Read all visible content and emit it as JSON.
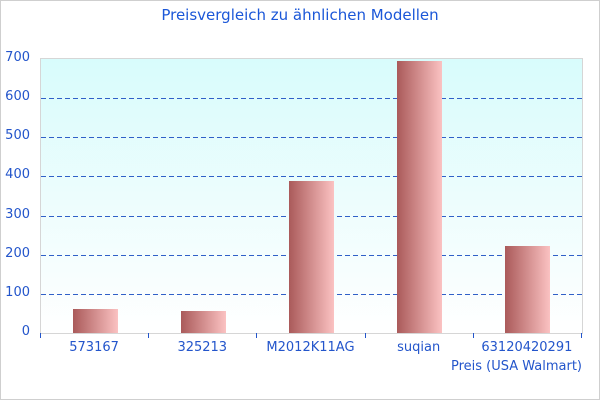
{
  "title": "Preisvergleich zu ähnlichen Modellen",
  "chart_data": {
    "type": "bar",
    "categories": [
      "573167",
      "325213",
      "M2012K11AG",
      "suqian",
      "63120420291"
    ],
    "values": [
      61,
      56,
      389,
      695,
      223
    ],
    "title": "Preisvergleich zu ähnlichen Modellen",
    "xlabel": "Preis (USA Walmart)",
    "ylabel": "",
    "ylim": [
      0,
      700
    ],
    "yticks": [
      0,
      100,
      200,
      300,
      400,
      500,
      600,
      700
    ],
    "grid": "horizontal-dashed",
    "legend": "none"
  },
  "colors": {
    "title_text": "#1b57d8",
    "axis_text": "#2355cb",
    "gridline": "#3060c8",
    "plot_bg_top": "#d8fcfc",
    "plot_bg_bottom": "#ffffff",
    "plot_border": "#d6d6d6",
    "bar_gradient_left": "#aa5a5a",
    "bar_gradient_right": "#fbc2c2",
    "frame_border": "#cfcfcf"
  }
}
